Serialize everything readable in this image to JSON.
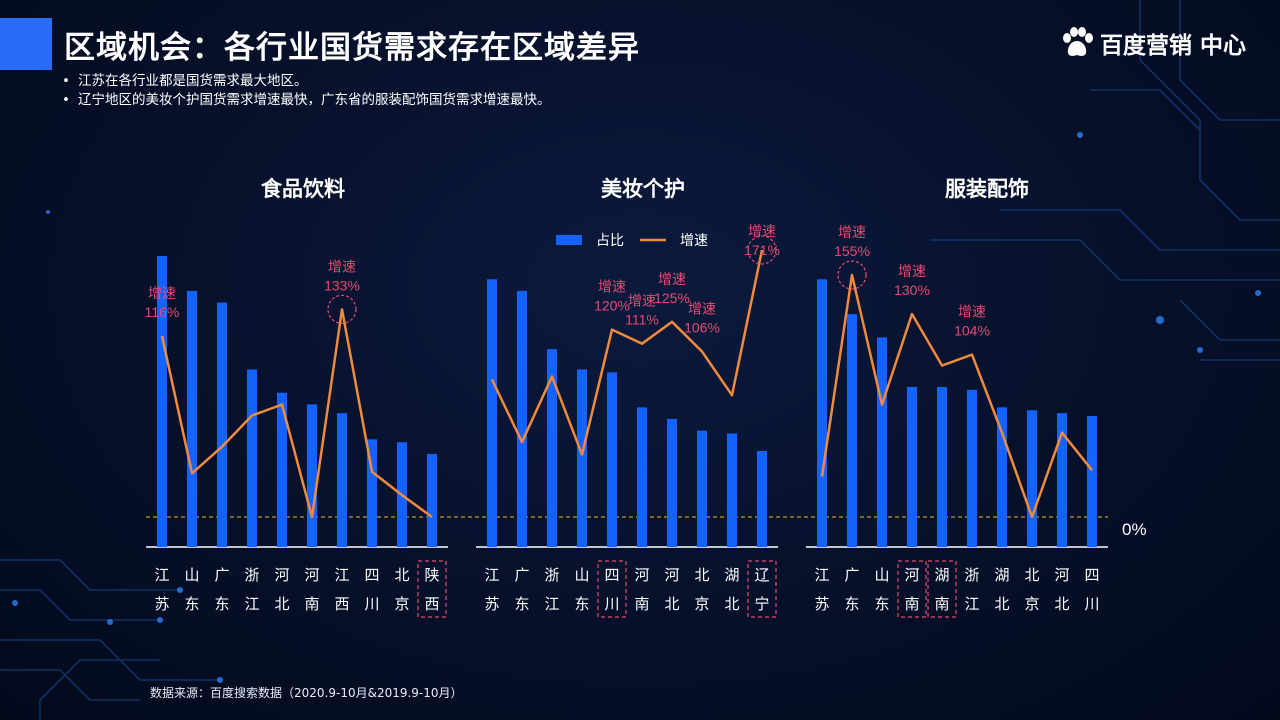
{
  "header": {
    "title": "区域机会：各行业国货需求存在区域差异",
    "brand": "百度营销 中心"
  },
  "bullets": [
    "江苏在各行业都是国货需求最大地区。",
    "辽宁地区的美妆个护国货需求增速最快，广东省的服装配饰国货需求增速最快。"
  ],
  "source": "数据来源：百度搜索数据（2020.9-10月&2019.9-10月）",
  "colors": {
    "bar": "#1463ff",
    "line": "#f08a3c",
    "annotation": "#e84a6f",
    "zero_line": "#e8c020",
    "accent": "#2a6cf5"
  },
  "chart_data": {
    "type": "bar",
    "legend": [
      {
        "name": "占比",
        "kind": "bar"
      },
      {
        "name": "增速",
        "kind": "line"
      }
    ],
    "zero_label": "0%",
    "panels": [
      {
        "title": "食品饮料",
        "categories": [
          "江苏",
          "山东",
          "广东",
          "浙江",
          "河北",
          "河南",
          "江西",
          "四川",
          "北京",
          "陕西"
        ],
        "share": [
          100,
          88,
          84,
          61,
          53,
          49,
          46,
          37,
          36,
          32
        ],
        "growth": [
          116,
          28,
          45,
          65,
          72,
          0,
          133,
          29,
          14,
          0
        ],
        "highlight": [
          9
        ],
        "circled": [
          6
        ],
        "labels": [
          {
            "index": 0,
            "line1": "增速",
            "line2": "116%"
          },
          {
            "index": 6,
            "line1": "增速",
            "line2": "133%"
          }
        ]
      },
      {
        "title": "美妆个护",
        "categories": [
          "江苏",
          "广东",
          "浙江",
          "山东",
          "四川",
          "河南",
          "河北",
          "北京",
          "湖北",
          "辽宁"
        ],
        "share": [
          92,
          88,
          68,
          61,
          60,
          48,
          44,
          40,
          39,
          33
        ],
        "growth": [
          88,
          48,
          90,
          40,
          120,
          111,
          125,
          106,
          78,
          171
        ],
        "highlight": [
          4,
          9
        ],
        "circled": [
          9
        ],
        "labels": [
          {
            "index": 4,
            "line1": "增速",
            "line2": "120%"
          },
          {
            "index": 5,
            "line1": "增速",
            "line2": "111%"
          },
          {
            "index": 6,
            "line1": "增速",
            "line2": "125%"
          },
          {
            "index": 7,
            "line1": "增速",
            "line2": "106%"
          },
          {
            "index": 9,
            "line1": "增速",
            "line2": "171%"
          }
        ]
      },
      {
        "title": "服装配饰",
        "categories": [
          "江苏",
          "广东",
          "山东",
          "河南",
          "湖南",
          "浙江",
          "湖北",
          "北京",
          "河北",
          "四川"
        ],
        "share": [
          92,
          80,
          72,
          55,
          55,
          54,
          48,
          47,
          46,
          45
        ],
        "growth": [
          26,
          155,
          72,
          130,
          97,
          104,
          54,
          0,
          54,
          30
        ],
        "highlight": [
          3,
          4
        ],
        "circled": [
          1
        ],
        "labels": [
          {
            "index": 1,
            "line1": "增速",
            "line2": "155%"
          },
          {
            "index": 3,
            "line1": "增速",
            "line2": "130%"
          },
          {
            "index": 5,
            "line1": "增速",
            "line2": "104%"
          }
        ]
      }
    ]
  }
}
